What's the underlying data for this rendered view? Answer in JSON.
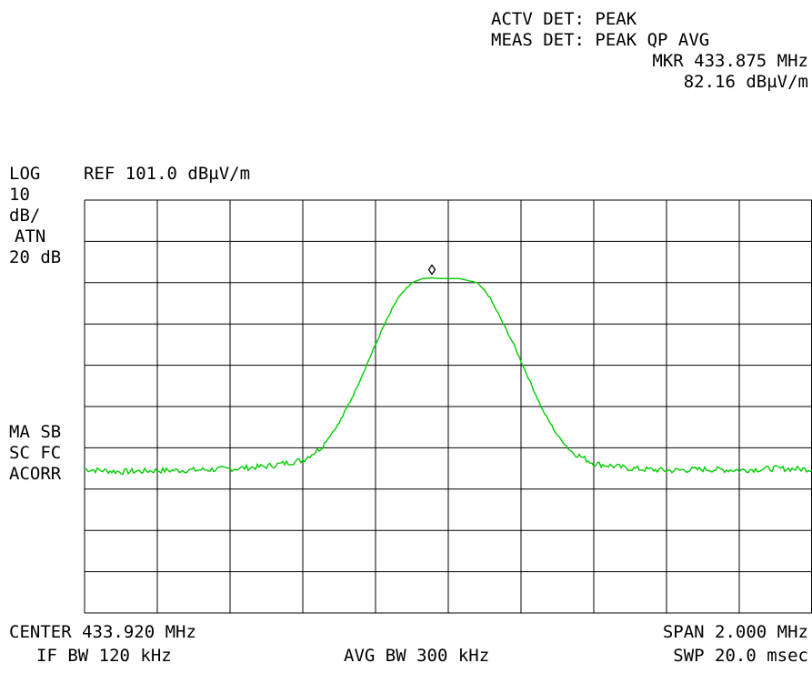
{
  "header": {
    "actv_det": "ACTV DET: PEAK",
    "meas_det": "MEAS DET: PEAK QP AVG",
    "marker_freq": "MKR 433.875 MHz",
    "marker_level": "82.16 dBµV/m"
  },
  "left_panel": {
    "scale_type": "LOG",
    "reference": "REF 101.0 dBµV/m",
    "scale_div_value": "10",
    "scale_div_unit": "dB/",
    "atten_label": "ATN",
    "atten_value": "20 dB",
    "flag_ma_sb": "MA SB",
    "flag_sc_fc": "SC FC",
    "flag_acorr": "ACORR"
  },
  "footer": {
    "center": "CENTER 433.920 MHz",
    "span": "SPAN 2.000 MHz",
    "if_bw": "IF BW 120 kHz",
    "avg_bw": "AVG BW 300 kHz",
    "sweep": "SWP 20.0 msec"
  },
  "colors": {
    "trace": "#00cc00",
    "grid": "#000000",
    "background": "#ffffff"
  },
  "chart_data": {
    "type": "line",
    "x_unit": "MHz",
    "y_unit": "dBµV/m",
    "xlim": [
      432.92,
      434.92
    ],
    "ylim": [
      1.0,
      101.0
    ],
    "grid": true,
    "x_divisions": 10,
    "y_divisions": 10,
    "series": [
      {
        "x": [
          432.92,
          433.02,
          433.12,
          433.22,
          433.32,
          433.42,
          433.52,
          433.57,
          433.62,
          433.66,
          433.7,
          433.74,
          433.78,
          433.82,
          433.85,
          433.875,
          433.9,
          433.95,
          434.0,
          434.03,
          434.06,
          434.1,
          434.14,
          434.18,
          434.22,
          434.26,
          434.32,
          434.42,
          434.52,
          434.62,
          434.72,
          434.82,
          434.92
        ],
        "y": [
          35.8,
          35.2,
          35.5,
          35.6,
          35.9,
          36.5,
          38.0,
          41.0,
          47.0,
          54.0,
          62.0,
          70.0,
          77.0,
          81.0,
          82.0,
          82.16,
          82.0,
          82.0,
          81.0,
          78.0,
          73.0,
          66.0,
          58.0,
          50.0,
          44.0,
          40.0,
          37.2,
          36.0,
          35.5,
          35.8,
          35.6,
          36.0,
          35.8
        ]
      }
    ],
    "marker": {
      "x": 433.875,
      "y": 82.16
    }
  }
}
